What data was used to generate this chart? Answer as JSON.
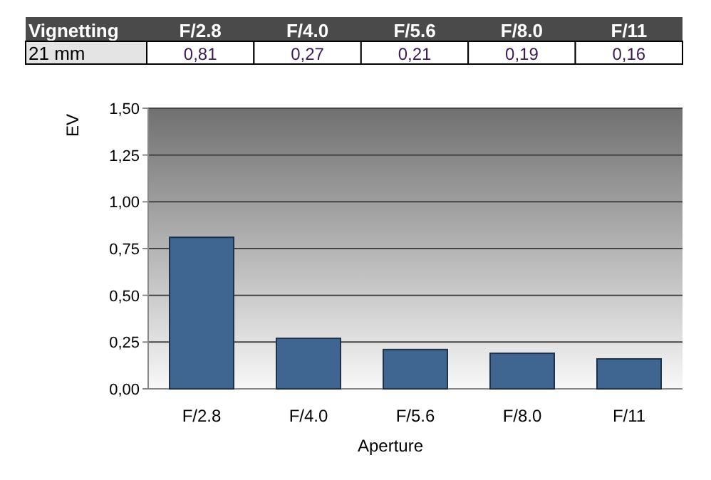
{
  "chart_data": {
    "type": "bar",
    "title": "Vignetting",
    "annotations": [
      "21 mm"
    ],
    "xlabel": "Aperture",
    "ylabel": "EV",
    "categories": [
      "F/2.8",
      "F/4.0",
      "F/5.6",
      "F/8.0",
      "F/11"
    ],
    "values": [
      0.81,
      0.27,
      0.21,
      0.19,
      0.16
    ],
    "value_labels": [
      "0,81",
      "0,27",
      "0,21",
      "0,19",
      "0,16"
    ],
    "color": "#3f6690",
    "ylim": [
      0,
      1.5
    ],
    "yticks": [
      {
        "value": 0,
        "label": "0,00"
      },
      {
        "value": 0.25,
        "label": "0,25"
      },
      {
        "value": 0.5,
        "label": "0,50"
      },
      {
        "value": 0.75,
        "label": "0,75"
      },
      {
        "value": 1,
        "label": "1,00"
      },
      {
        "value": 1.25,
        "label": "1,25"
      },
      {
        "value": 1.5,
        "label": "1,50"
      }
    ],
    "grid": "y"
  }
}
